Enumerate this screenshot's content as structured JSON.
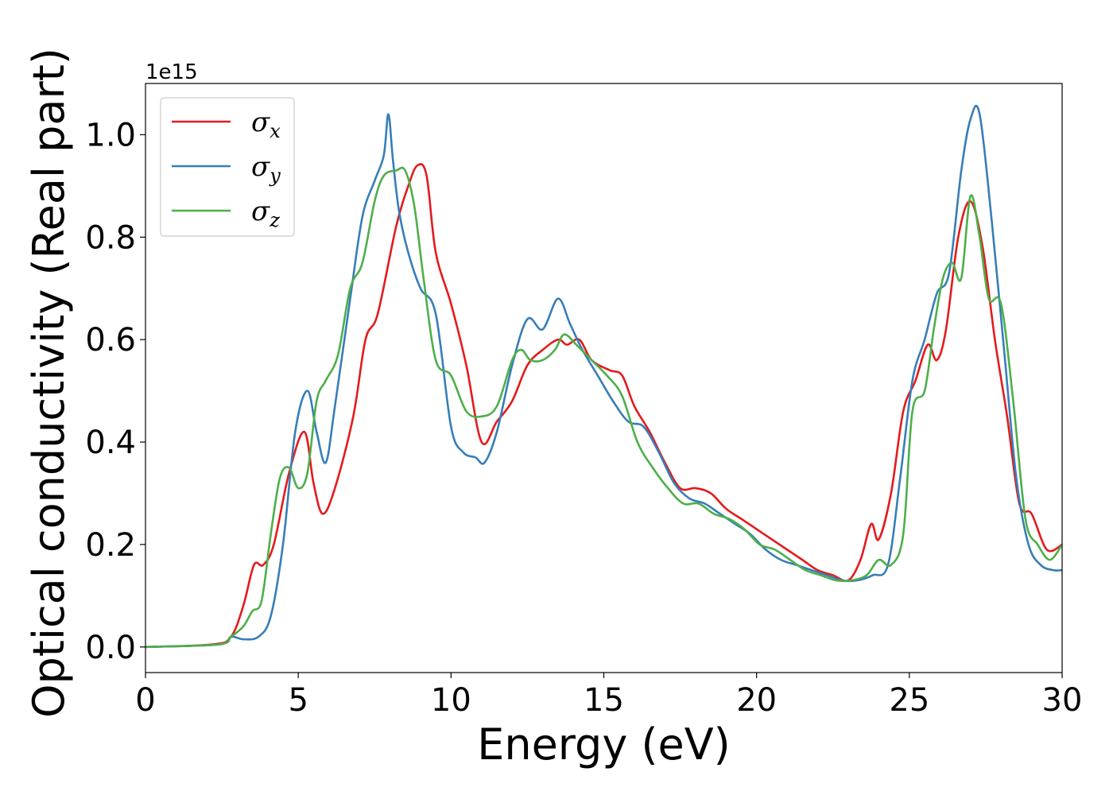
{
  "chart_data": {
    "type": "line",
    "xlabel": "Energy (eV)",
    "ylabel": "Optical conductivity (Real part)",
    "y_offset_label": "1e15",
    "xlim": [
      0,
      30
    ],
    "ylim": [
      -0.05,
      1.1
    ],
    "xticks": [
      "0",
      "5",
      "10",
      "15",
      "20",
      "25",
      "30"
    ],
    "yticks": [
      "0.0",
      "0.2",
      "0.4",
      "0.6",
      "0.8",
      "1.0"
    ],
    "grid": false,
    "legend_position": "upper-left",
    "series": [
      {
        "name": "σx",
        "legend_base": "σ",
        "legend_sub": "x",
        "color": "#e41a1c",
        "x": [
          0,
          2.2,
          2.8,
          3.2,
          3.55,
          3.85,
          4.2,
          4.7,
          5.2,
          5.5,
          5.8,
          6.2,
          6.8,
          7.2,
          7.6,
          8.2,
          8.6,
          8.9,
          9.2,
          9.5,
          10.0,
          10.5,
          11.0,
          11.5,
          12.0,
          12.5,
          13.0,
          13.5,
          13.8,
          14.2,
          14.6,
          15.2,
          15.6,
          16.0,
          16.5,
          17.0,
          17.5,
          18.0,
          18.5,
          19.0,
          19.5,
          20.0,
          20.5,
          21.0,
          21.5,
          22.0,
          22.5,
          23.0,
          23.4,
          23.75,
          24.0,
          24.4,
          24.8,
          25.2,
          25.6,
          25.9,
          26.2,
          26.6,
          27.0,
          27.4,
          27.8,
          28.2,
          28.6,
          29.0,
          29.5,
          30.0
        ],
        "y": [
          0.0,
          0.005,
          0.02,
          0.08,
          0.16,
          0.16,
          0.2,
          0.34,
          0.42,
          0.32,
          0.26,
          0.31,
          0.45,
          0.6,
          0.65,
          0.82,
          0.9,
          0.94,
          0.92,
          0.77,
          0.67,
          0.55,
          0.4,
          0.44,
          0.48,
          0.55,
          0.58,
          0.6,
          0.59,
          0.6,
          0.56,
          0.54,
          0.53,
          0.47,
          0.42,
          0.36,
          0.31,
          0.31,
          0.3,
          0.27,
          0.25,
          0.23,
          0.21,
          0.19,
          0.17,
          0.15,
          0.14,
          0.13,
          0.17,
          0.24,
          0.21,
          0.3,
          0.46,
          0.52,
          0.59,
          0.56,
          0.62,
          0.8,
          0.87,
          0.78,
          0.6,
          0.45,
          0.28,
          0.26,
          0.19,
          0.2
        ]
      },
      {
        "name": "σy",
        "legend_base": "σ",
        "legend_sub": "y",
        "color": "#377eb8",
        "x": [
          0,
          2.4,
          2.8,
          3.2,
          3.7,
          4.1,
          4.5,
          4.9,
          5.3,
          5.6,
          5.9,
          6.2,
          6.7,
          7.1,
          7.5,
          7.8,
          7.95,
          8.1,
          8.3,
          8.6,
          9.0,
          9.5,
          10.0,
          10.4,
          10.8,
          11.1,
          11.5,
          12.0,
          12.5,
          13.0,
          13.5,
          13.9,
          14.3,
          14.8,
          15.3,
          15.8,
          16.3,
          16.8,
          17.3,
          17.8,
          18.3,
          18.8,
          19.3,
          19.8,
          20.3,
          20.8,
          21.3,
          21.8,
          22.3,
          22.8,
          23.3,
          23.8,
          24.3,
          24.7,
          25.1,
          25.5,
          25.9,
          26.3,
          26.7,
          27.0,
          27.3,
          27.7,
          28.1,
          28.5,
          28.9,
          29.3,
          29.7,
          30.0
        ],
        "y": [
          0.0,
          0.005,
          0.02,
          0.015,
          0.02,
          0.06,
          0.2,
          0.42,
          0.5,
          0.42,
          0.36,
          0.47,
          0.68,
          0.84,
          0.91,
          0.96,
          1.04,
          0.95,
          0.85,
          0.77,
          0.7,
          0.65,
          0.43,
          0.38,
          0.37,
          0.36,
          0.42,
          0.55,
          0.64,
          0.62,
          0.68,
          0.63,
          0.58,
          0.53,
          0.48,
          0.44,
          0.43,
          0.38,
          0.32,
          0.29,
          0.28,
          0.26,
          0.24,
          0.22,
          0.19,
          0.17,
          0.16,
          0.15,
          0.14,
          0.13,
          0.13,
          0.14,
          0.16,
          0.33,
          0.52,
          0.6,
          0.69,
          0.73,
          0.93,
          1.03,
          1.04,
          0.83,
          0.58,
          0.33,
          0.2,
          0.16,
          0.15,
          0.15
        ]
      },
      {
        "name": "σz",
        "legend_base": "σ",
        "legend_sub": "z",
        "color": "#4daf4a",
        "x": [
          0,
          2.4,
          2.8,
          3.2,
          3.5,
          3.8,
          4.1,
          4.4,
          4.7,
          5.0,
          5.3,
          5.6,
          5.9,
          6.3,
          6.7,
          7.1,
          7.5,
          7.8,
          8.2,
          8.5,
          8.8,
          9.1,
          9.5,
          10.0,
          10.5,
          11.0,
          11.5,
          12.0,
          12.3,
          12.6,
          13.0,
          13.4,
          13.7,
          14.1,
          14.6,
          15.1,
          15.6,
          16.1,
          16.6,
          17.1,
          17.6,
          18.1,
          18.6,
          19.1,
          19.6,
          20.1,
          20.6,
          21.1,
          21.6,
          22.1,
          22.6,
          23.1,
          23.6,
          24.0,
          24.4,
          24.8,
          25.1,
          25.5,
          25.8,
          26.1,
          26.4,
          26.7,
          27.0,
          27.3,
          27.6,
          28.0,
          28.4,
          28.8,
          29.2,
          29.6,
          30.0
        ],
        "y": [
          0.0,
          0.005,
          0.02,
          0.04,
          0.07,
          0.09,
          0.22,
          0.33,
          0.35,
          0.31,
          0.34,
          0.48,
          0.52,
          0.57,
          0.7,
          0.75,
          0.87,
          0.92,
          0.93,
          0.93,
          0.86,
          0.72,
          0.56,
          0.53,
          0.46,
          0.45,
          0.47,
          0.56,
          0.58,
          0.56,
          0.56,
          0.58,
          0.61,
          0.59,
          0.56,
          0.53,
          0.49,
          0.4,
          0.35,
          0.31,
          0.28,
          0.28,
          0.26,
          0.25,
          0.23,
          0.2,
          0.19,
          0.17,
          0.15,
          0.14,
          0.13,
          0.13,
          0.14,
          0.17,
          0.16,
          0.22,
          0.46,
          0.5,
          0.62,
          0.72,
          0.75,
          0.72,
          0.88,
          0.8,
          0.68,
          0.67,
          0.48,
          0.25,
          0.2,
          0.17,
          0.2
        ]
      }
    ]
  }
}
